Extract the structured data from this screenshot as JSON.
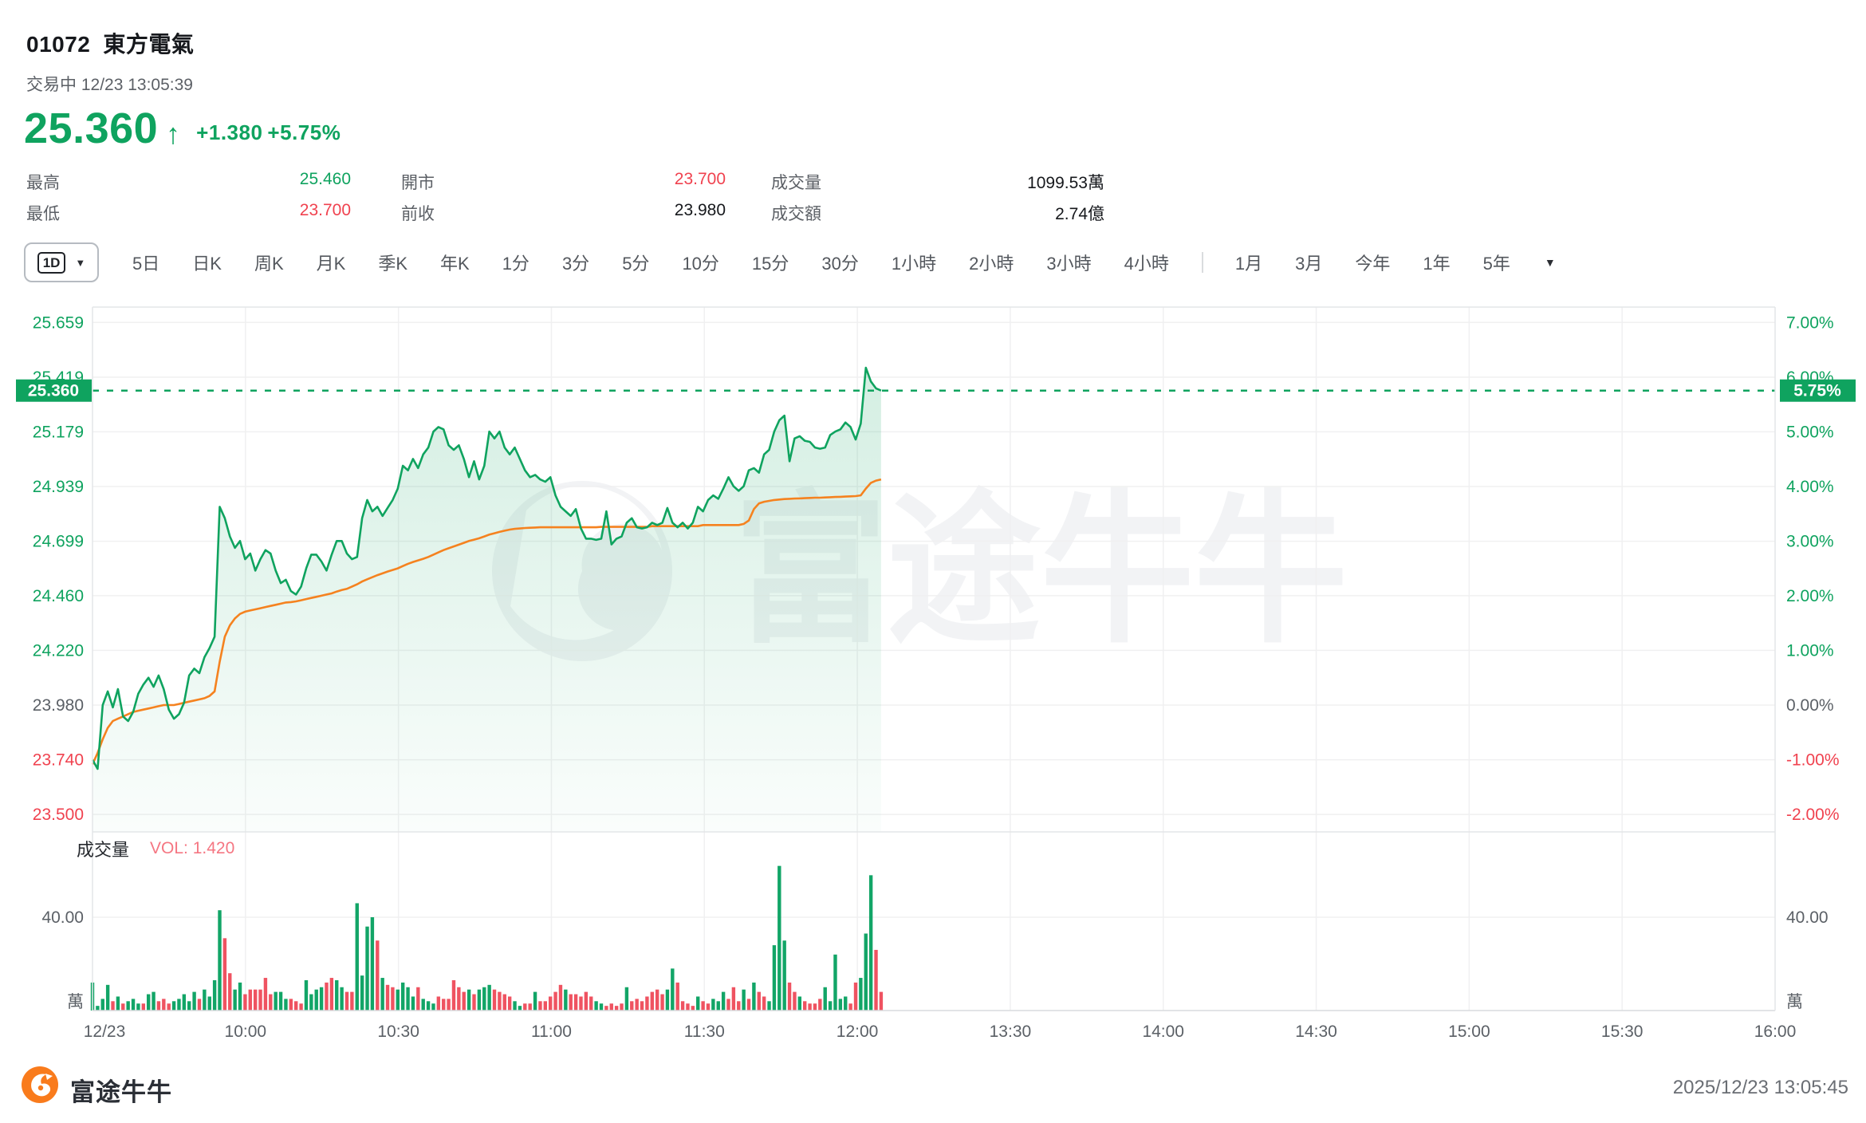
{
  "header": {
    "code": "01072",
    "name": "東方電氣",
    "status_line": "交易中 12/23 13:05:39",
    "price": "25.360",
    "arrow": "↑",
    "change": "+1.380",
    "change_pct": "+5.75%"
  },
  "stats": {
    "cells": [
      {
        "label": "最高",
        "value": "25.460",
        "color": "#0fa35f"
      },
      {
        "label": "開市",
        "value": "23.700",
        "color": "#f0424f"
      },
      {
        "label": "成交量",
        "value": "1099.53萬",
        "color": "#16181c"
      },
      {
        "label": "最低",
        "value": "23.700",
        "color": "#f0424f"
      },
      {
        "label": "前收",
        "value": "23.980",
        "color": "#16181c"
      },
      {
        "label": "成交額",
        "value": "2.74億",
        "color": "#16181c"
      }
    ]
  },
  "toolbar": {
    "selector_label": "1D",
    "selector_caret": "▼",
    "tabs": [
      "5日",
      "日K",
      "周K",
      "月K",
      "季K",
      "年K",
      "1分",
      "3分",
      "5分",
      "10分",
      "15分",
      "30分",
      "1小時",
      "2小時",
      "3小時",
      "4小時"
    ],
    "tabs_right": [
      "1月",
      "3月",
      "今年",
      "1年",
      "5年"
    ],
    "end_caret": "▼"
  },
  "volume_header": {
    "label": "成交量",
    "vol_text": "VOL: 1.420"
  },
  "footer": {
    "brand": "富途牛牛",
    "timestamp": "2025/12/23 13:05:45"
  },
  "watermark_text": "富途牛牛",
  "colors": {
    "up_green": "#0fa35f",
    "down_red": "#f0424f",
    "avg_orange": "#f5821f",
    "vol_pink": "#f57682",
    "neutral_text": "#5b6066",
    "grid": "#f0f0f1",
    "border": "#e4e6e8",
    "watermark": "#f2f3f5",
    "bar_green": "#12a567",
    "bar_red": "#ef5361",
    "brand_orange": "#f97b1c"
  },
  "chart_data": {
    "type": "line",
    "title": "01072 東方電氣 分時圖 (intraday)",
    "prev_close": 23.98,
    "session_minutes": 150,
    "data_end_minute": 155,
    "left_axis": {
      "labels": [
        "25.659",
        "25.419",
        "25.179",
        "24.939",
        "24.699",
        "24.460",
        "24.220",
        "23.980",
        "23.740",
        "23.500"
      ],
      "values": [
        25.659,
        25.419,
        25.179,
        24.939,
        24.699,
        24.46,
        24.22,
        23.98,
        23.74,
        23.5
      ],
      "colors": [
        "g",
        "g",
        "g",
        "g",
        "g",
        "g",
        "g",
        "n",
        "r",
        "r"
      ]
    },
    "right_axis": {
      "labels": [
        "7.00%",
        "6.00%",
        "5.00%",
        "4.00%",
        "3.00%",
        "2.00%",
        "1.00%",
        "0.00%",
        "-1.00%",
        "-2.00%"
      ]
    },
    "x_axis": {
      "labels": [
        "12/23",
        "10:00",
        "10:30",
        "11:00",
        "11:30",
        "12:00",
        "13:30",
        "14:00",
        "14:30",
        "15:00",
        "15:30",
        "16:00"
      ]
    },
    "current": {
      "price_label": "25.360",
      "pct_label": "5.75%",
      "value": 25.36
    },
    "series": [
      {
        "name": "price",
        "values": [
          23.74,
          23.7,
          23.98,
          24.04,
          23.97,
          24.05,
          23.93,
          23.91,
          23.95,
          24.03,
          24.07,
          24.1,
          24.06,
          24.11,
          24.05,
          23.96,
          23.92,
          23.94,
          23.99,
          24.11,
          24.14,
          24.12,
          24.19,
          24.23,
          24.28,
          24.85,
          24.8,
          24.72,
          24.67,
          24.7,
          24.62,
          24.645,
          24.57,
          24.62,
          24.66,
          24.645,
          24.57,
          24.515,
          24.53,
          24.48,
          24.465,
          24.5,
          24.58,
          24.64,
          24.64,
          24.61,
          24.57,
          24.64,
          24.7,
          24.7,
          24.645,
          24.62,
          24.63,
          24.8,
          24.88,
          24.83,
          24.85,
          24.81,
          24.845,
          24.88,
          24.93,
          25.03,
          25.01,
          25.06,
          25.02,
          25.08,
          25.11,
          25.18,
          25.2,
          25.19,
          25.12,
          25.1,
          25.12,
          25.06,
          24.98,
          25.05,
          24.97,
          25.03,
          25.18,
          25.15,
          25.18,
          25.11,
          25.08,
          25.11,
          25.06,
          25.01,
          24.98,
          24.99,
          24.97,
          24.96,
          24.98,
          24.9,
          24.85,
          24.83,
          24.81,
          24.84,
          24.755,
          24.71,
          24.71,
          24.705,
          24.71,
          24.83,
          24.685,
          24.71,
          24.72,
          24.78,
          24.8,
          24.76,
          24.755,
          24.76,
          24.78,
          24.77,
          24.78,
          24.845,
          24.78,
          24.76,
          24.78,
          24.755,
          24.78,
          24.85,
          24.83,
          24.88,
          24.9,
          24.885,
          24.93,
          24.98,
          24.94,
          24.92,
          24.94,
          25.01,
          25.02,
          25.0,
          25.08,
          25.1,
          25.18,
          25.23,
          25.25,
          25.05,
          25.15,
          25.16,
          25.14,
          25.135,
          25.11,
          25.105,
          25.11,
          25.165,
          25.18,
          25.19,
          25.22,
          25.2,
          25.145,
          25.215,
          25.46,
          25.4,
          25.37,
          25.36
        ]
      },
      {
        "name": "avg_price",
        "values": [
          23.72,
          23.77,
          23.83,
          23.88,
          23.91,
          23.92,
          23.93,
          23.94,
          23.95,
          23.955,
          23.96,
          23.965,
          23.97,
          23.975,
          23.98,
          23.98,
          23.98,
          23.985,
          23.99,
          23.995,
          24.0,
          24.005,
          24.01,
          24.02,
          24.04,
          24.17,
          24.28,
          24.33,
          24.36,
          24.38,
          24.39,
          24.395,
          24.4,
          24.405,
          24.41,
          24.415,
          24.42,
          24.425,
          24.43,
          24.432,
          24.435,
          24.44,
          24.445,
          24.45,
          24.455,
          24.46,
          24.465,
          24.47,
          24.478,
          24.485,
          24.49,
          24.5,
          24.51,
          24.522,
          24.532,
          24.541,
          24.55,
          24.558,
          24.566,
          24.573,
          24.58,
          24.59,
          24.6,
          24.608,
          24.615,
          24.622,
          24.63,
          24.64,
          24.65,
          24.66,
          24.668,
          24.676,
          24.684,
          24.692,
          24.7,
          24.706,
          24.712,
          24.72,
          24.728,
          24.734,
          24.74,
          24.745,
          24.75,
          24.753,
          24.755,
          24.757,
          24.758,
          24.759,
          24.76,
          24.76,
          24.76,
          24.76,
          24.76,
          24.76,
          24.76,
          24.76,
          24.76,
          24.76,
          24.76,
          24.76,
          24.762,
          24.762,
          24.762,
          24.762,
          24.762,
          24.762,
          24.762,
          24.762,
          24.762,
          24.762,
          24.765,
          24.765,
          24.765,
          24.765,
          24.765,
          24.765,
          24.765,
          24.765,
          24.765,
          24.765,
          24.77,
          24.77,
          24.77,
          24.77,
          24.77,
          24.77,
          24.77,
          24.77,
          24.775,
          24.79,
          24.84,
          24.865,
          24.872,
          24.876,
          24.88,
          24.882,
          24.884,
          24.885,
          24.886,
          24.887,
          24.888,
          24.889,
          24.89,
          24.89,
          24.891,
          24.892,
          24.893,
          24.894,
          24.895,
          24.896,
          24.897,
          24.9,
          24.93,
          24.955,
          24.965,
          24.97
        ]
      }
    ],
    "volume": {
      "label_40": "40.00",
      "gridline_value": 40,
      "unit": "萬",
      "values": [
        12,
        2,
        5,
        11,
        -4,
        6,
        -3,
        4,
        5,
        3,
        -3,
        7,
        8,
        -4,
        -5,
        -3,
        4,
        5,
        7,
        4,
        8,
        -5,
        9,
        6,
        13,
        43,
        -31,
        -16,
        9,
        12,
        -7,
        -9,
        -9,
        -9,
        -14,
        -7,
        8,
        8,
        5,
        -5,
        -4,
        -3,
        13,
        7,
        9,
        10,
        -12,
        -14,
        13,
        10,
        -8,
        -8,
        46,
        15,
        36,
        40,
        -30,
        14,
        -11,
        -10,
        9,
        12,
        10,
        6,
        -10,
        5,
        4,
        3,
        -6,
        -5,
        -5,
        -13,
        -10,
        -8,
        9,
        -7,
        9,
        10,
        11,
        -9,
        -8,
        -7,
        -6,
        4,
        2,
        -3,
        -3,
        8,
        -4,
        -4,
        -6,
        -8,
        -11,
        9,
        -7,
        -7,
        -6,
        -8,
        -6,
        4,
        3,
        -2,
        -3,
        -2,
        -3,
        10,
        -4,
        -5,
        -4,
        -6,
        -8,
        -9,
        -7,
        9,
        18,
        -12,
        -4,
        -3,
        -2,
        6,
        -4,
        -3,
        5,
        4,
        8,
        -5,
        -10,
        -4,
        9,
        -5,
        12,
        -8,
        -6,
        4,
        28,
        62,
        30,
        -12,
        -8,
        6,
        -4,
        -3,
        -3,
        -5,
        10,
        4,
        24,
        5,
        6,
        -3,
        -12,
        14,
        33,
        58,
        -26,
        -8
      ]
    }
  }
}
